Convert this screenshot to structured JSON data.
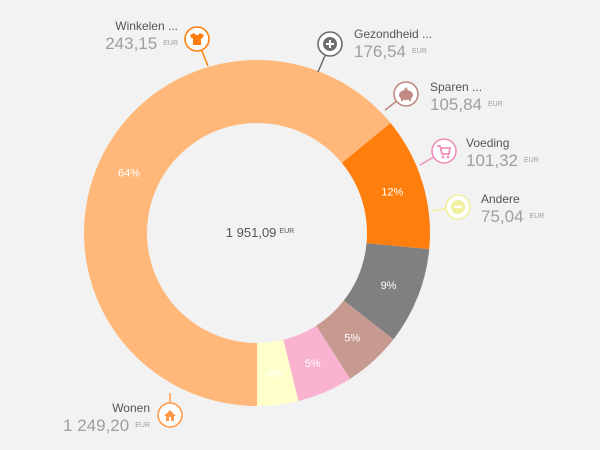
{
  "chart_data": {
    "type": "donut",
    "title": "",
    "total": {
      "amount": "1 951,09",
      "unit": "EUR"
    },
    "series": [
      {
        "name": "Wonen",
        "amount": "1 249,20",
        "value": 1249.2,
        "percent_label": "64%",
        "unit": "EUR",
        "color": "#ffb87a",
        "icon": "house-icon",
        "icon_color": "#ff9a4a"
      },
      {
        "name": "Winkelen ...",
        "amount": "243,15",
        "value": 243.15,
        "percent_label": "12%",
        "unit": "EUR",
        "color": "#ff7f0e",
        "icon": "shirt-icon",
        "icon_color": "#ff7f0e"
      },
      {
        "name": "Gezondheid ...",
        "amount": "176,54",
        "value": 176.54,
        "percent_label": "9%",
        "unit": "EUR",
        "color": "#808080",
        "icon": "plus-circle-icon",
        "icon_color": "#6e6e6e"
      },
      {
        "name": "Sparen ...",
        "amount": "105,84",
        "value": 105.84,
        "percent_label": "5%",
        "unit": "EUR",
        "color": "#c69a90",
        "icon": "piggy-bank-icon",
        "icon_color": "#c08a82"
      },
      {
        "name": "Voeding",
        "amount": "101,32",
        "value": 101.32,
        "percent_label": "5%",
        "unit": "EUR",
        "color": "#f9b3d1",
        "icon": "cart-icon",
        "icon_color": "#f08fbb"
      },
      {
        "name": "Andere",
        "amount": "75,04",
        "value": 75.04,
        "percent_label": "4%",
        "unit": "EUR",
        "color": "#ffffcc",
        "icon": "minus-circle-icon",
        "icon_color": "#f0f0a0"
      }
    ]
  }
}
